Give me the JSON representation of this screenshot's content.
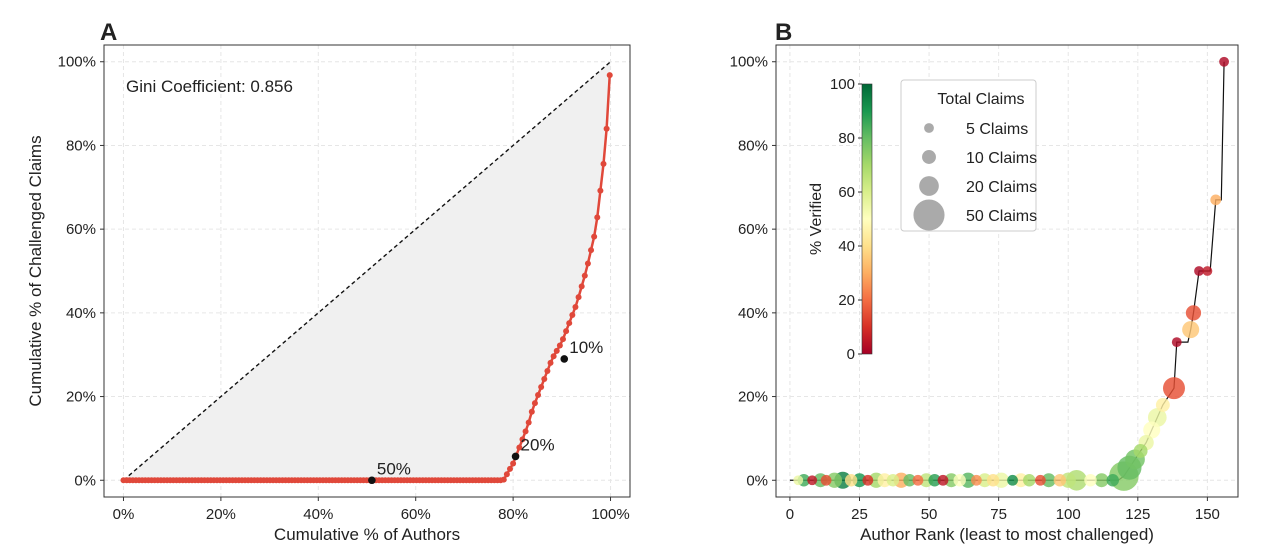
{
  "chart_data": [
    {
      "panel_label": "A",
      "type": "line",
      "xlabel": "Cumulative % of Authors",
      "ylabel": "Cumulative % of Challenged Claims",
      "xlim": [
        -4,
        104
      ],
      "ylim": [
        -4,
        104
      ],
      "xticks": [
        0,
        20,
        40,
        60,
        80,
        100
      ],
      "yticks": [
        0,
        20,
        40,
        60,
        80,
        100
      ],
      "xtick_labels": [
        "0%",
        "20%",
        "40%",
        "60%",
        "80%",
        "100%"
      ],
      "ytick_labels": [
        "0%",
        "20%",
        "40%",
        "60%",
        "80%",
        "100%"
      ],
      "grid": true,
      "annotation_text": "Gini Coefficient: 0.856",
      "equality_line": {
        "x": [
          0,
          100
        ],
        "y": [
          0,
          100
        ],
        "style": "dashed",
        "color": "#111111"
      },
      "lorenz_curve": {
        "color": "#e0483a",
        "x": [
          0,
          78,
          79,
          80,
          81,
          82,
          83,
          84,
          85,
          86,
          87,
          88,
          89,
          90,
          91,
          92,
          93,
          94,
          95,
          96,
          97,
          98,
          99,
          100
        ],
        "y": [
          0,
          0,
          2,
          4,
          7,
          10,
          13,
          17,
          20,
          23,
          26,
          29,
          31,
          33,
          36,
          39,
          42,
          46,
          50,
          55,
          60,
          70,
          80,
          100
        ]
      },
      "markers": [
        {
          "label": "50%",
          "x": 51,
          "y": 0
        },
        {
          "label": "20%",
          "x": 80.5,
          "y": 5.7
        },
        {
          "label": "10%",
          "x": 90.5,
          "y": 29
        }
      ],
      "fill_color": "#f0f0f0"
    },
    {
      "panel_label": "B",
      "type": "scatter",
      "xlabel": "Author Rank (least to most challenged)",
      "ylabel": "",
      "xlim": [
        -5,
        161
      ],
      "ylim": [
        -4,
        104
      ],
      "xticks": [
        0,
        25,
        50,
        75,
        100,
        125,
        150
      ],
      "yticks": [
        0,
        20,
        40,
        60,
        80,
        100
      ],
      "xtick_labels": [
        "0",
        "25",
        "50",
        "75",
        "100",
        "125",
        "150"
      ],
      "ytick_labels": [
        "0%",
        "20%",
        "40%",
        "60%",
        "80%",
        "100%"
      ],
      "grid": true,
      "colorbar": {
        "label": "% Verified",
        "min": 0,
        "max": 100,
        "ticks": [
          0,
          20,
          40,
          60,
          80,
          100
        ],
        "colormap": "RdYlGn"
      },
      "size_legend": {
        "title": "Total Claims",
        "placement": "top-center",
        "entries": [
          {
            "label": "5 Claims",
            "claims": 5
          },
          {
            "label": "10 Claims",
            "claims": 10
          },
          {
            "label": "20 Claims",
            "claims": 20
          },
          {
            "label": "50 Claims",
            "claims": 50
          }
        ]
      },
      "cumulative_line": {
        "color": "#111111",
        "x": [
          0,
          118,
          120,
          122,
          124,
          126,
          128,
          130,
          132,
          134,
          136,
          138,
          139,
          140,
          143,
          144,
          145,
          147,
          150,
          151,
          153,
          155,
          156
        ],
        "y": [
          0,
          0,
          1,
          3,
          5,
          7,
          9,
          12,
          15,
          18,
          20,
          22,
          33,
          33,
          33,
          36,
          40,
          50,
          50,
          50,
          67,
          67,
          100
        ]
      },
      "points": [
        {
          "x": 3,
          "y": 0,
          "size": 5,
          "verified": 55
        },
        {
          "x": 5,
          "y": 0,
          "size": 8,
          "verified": 85
        },
        {
          "x": 8,
          "y": 0,
          "size": 5,
          "verified": 5
        },
        {
          "x": 11,
          "y": 0,
          "size": 10,
          "verified": 80
        },
        {
          "x": 13,
          "y": 0,
          "size": 6,
          "verified": 15
        },
        {
          "x": 16,
          "y": 0,
          "size": 12,
          "verified": 75
        },
        {
          "x": 19,
          "y": 0,
          "size": 15,
          "verified": 95
        },
        {
          "x": 22,
          "y": 0,
          "size": 8,
          "verified": 40
        },
        {
          "x": 25,
          "y": 0,
          "size": 10,
          "verified": 90
        },
        {
          "x": 28,
          "y": 0,
          "size": 6,
          "verified": 10
        },
        {
          "x": 31,
          "y": 0,
          "size": 12,
          "verified": 70
        },
        {
          "x": 34,
          "y": 0,
          "size": 10,
          "verified": 45
        },
        {
          "x": 37,
          "y": 0,
          "size": 8,
          "verified": 60
        },
        {
          "x": 40,
          "y": 0,
          "size": 12,
          "verified": 30
        },
        {
          "x": 43,
          "y": 0,
          "size": 8,
          "verified": 80
        },
        {
          "x": 46,
          "y": 0,
          "size": 6,
          "verified": 20
        },
        {
          "x": 49,
          "y": 0,
          "size": 10,
          "verified": 65
        },
        {
          "x": 52,
          "y": 0,
          "size": 8,
          "verified": 88
        },
        {
          "x": 55,
          "y": 0,
          "size": 6,
          "verified": 5
        },
        {
          "x": 58,
          "y": 0,
          "size": 10,
          "verified": 75
        },
        {
          "x": 61,
          "y": 0,
          "size": 8,
          "verified": 50
        },
        {
          "x": 64,
          "y": 0,
          "size": 12,
          "verified": 82
        },
        {
          "x": 67,
          "y": 0,
          "size": 6,
          "verified": 25
        },
        {
          "x": 70,
          "y": 0,
          "size": 10,
          "verified": 60
        },
        {
          "x": 73,
          "y": 0,
          "size": 8,
          "verified": 40
        },
        {
          "x": 76,
          "y": 0,
          "size": 12,
          "verified": 55
        },
        {
          "x": 80,
          "y": 0,
          "size": 6,
          "verified": 92
        },
        {
          "x": 83,
          "y": 0,
          "size": 10,
          "verified": 45
        },
        {
          "x": 86,
          "y": 0,
          "size": 8,
          "verified": 70
        },
        {
          "x": 90,
          "y": 0,
          "size": 6,
          "verified": 15
        },
        {
          "x": 93,
          "y": 0,
          "size": 10,
          "verified": 80
        },
        {
          "x": 97,
          "y": 0,
          "size": 8,
          "verified": 35
        },
        {
          "x": 100,
          "y": 0,
          "size": 12,
          "verified": 65
        },
        {
          "x": 103,
          "y": 0,
          "size": 22,
          "verified": 68
        },
        {
          "x": 108,
          "y": 0,
          "size": 8,
          "verified": 50
        },
        {
          "x": 112,
          "y": 0,
          "size": 10,
          "verified": 75
        },
        {
          "x": 116,
          "y": 0,
          "size": 8,
          "verified": 85
        },
        {
          "x": 120,
          "y": 1,
          "size": 45,
          "verified": 75
        },
        {
          "x": 122,
          "y": 3,
          "size": 30,
          "verified": 80
        },
        {
          "x": 124,
          "y": 5,
          "size": 20,
          "verified": 78
        },
        {
          "x": 126,
          "y": 7,
          "size": 10,
          "verified": 70
        },
        {
          "x": 128,
          "y": 9,
          "size": 12,
          "verified": 55
        },
        {
          "x": 130,
          "y": 12,
          "size": 15,
          "verified": 50
        },
        {
          "x": 132,
          "y": 15,
          "size": 18,
          "verified": 55
        },
        {
          "x": 134,
          "y": 18,
          "size": 10,
          "verified": 45
        },
        {
          "x": 138,
          "y": 22,
          "size": 25,
          "verified": 15
        },
        {
          "x": 139,
          "y": 33,
          "size": 5,
          "verified": 2
        },
        {
          "x": 144,
          "y": 36,
          "size": 15,
          "verified": 35
        },
        {
          "x": 145,
          "y": 40,
          "size": 12,
          "verified": 15
        },
        {
          "x": 147,
          "y": 50,
          "size": 5,
          "verified": 2
        },
        {
          "x": 150,
          "y": 50,
          "size": 5,
          "verified": 5
        },
        {
          "x": 153,
          "y": 67,
          "size": 6,
          "verified": 30
        },
        {
          "x": 156,
          "y": 100,
          "size": 5,
          "verified": 2
        }
      ]
    }
  ]
}
